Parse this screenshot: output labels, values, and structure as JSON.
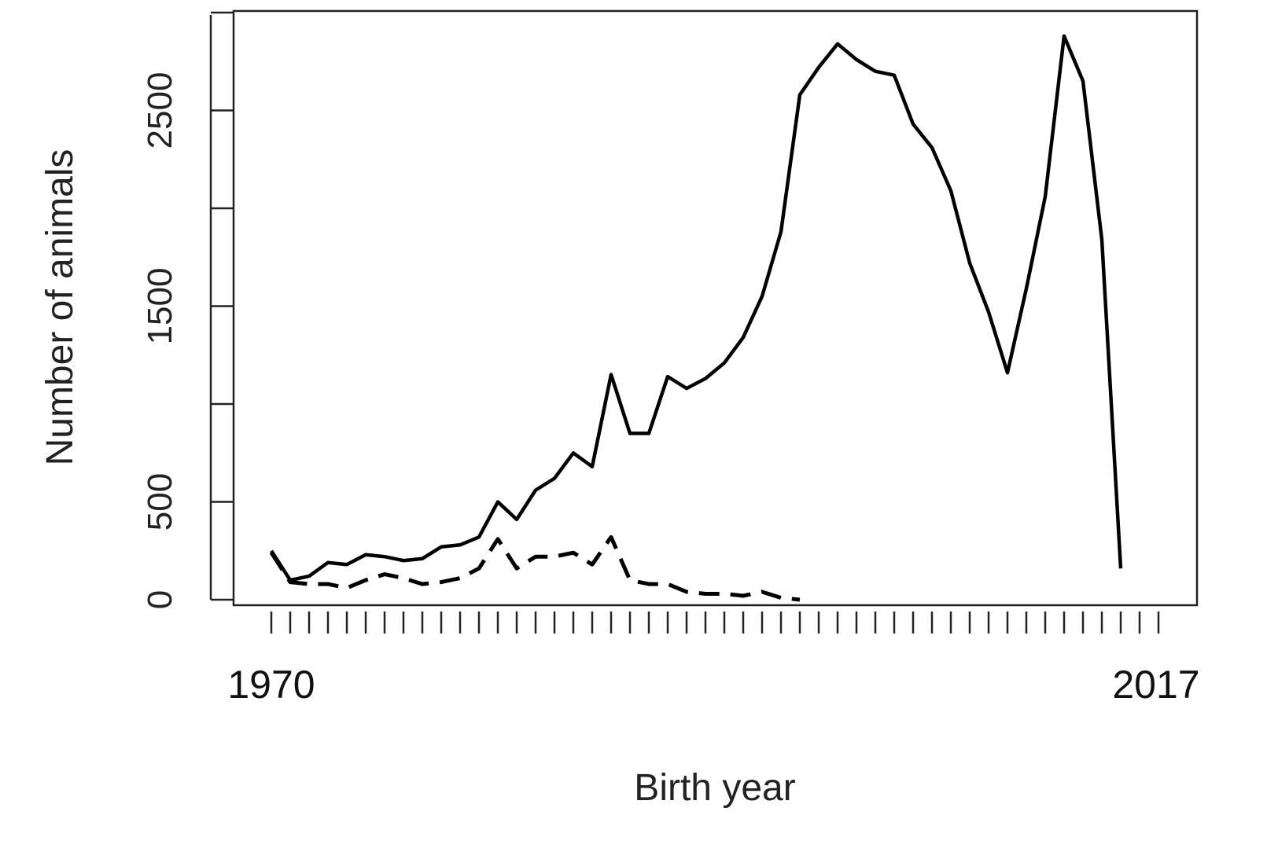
{
  "chart_data": {
    "type": "line",
    "title": "",
    "xlabel": "Birth year",
    "ylabel": "Number of animals",
    "xlim": [
      1970,
      2017
    ],
    "ylim": [
      0,
      3000
    ],
    "x_tick_labels": [
      "1970",
      "2017"
    ],
    "y_tick_labels": [
      "0",
      "500",
      "1500",
      "2500"
    ],
    "y_tick_values": [
      0,
      500,
      1000,
      1500,
      2000,
      2500,
      3000
    ],
    "y_label_values": [
      0,
      500,
      1500,
      2500
    ],
    "grid": false,
    "legend": "none",
    "series": [
      {
        "style": "solid",
        "color": "#000000",
        "x": [
          1970,
          1971,
          1972,
          1973,
          1974,
          1975,
          1976,
          1977,
          1978,
          1979,
          1980,
          1981,
          1982,
          1983,
          1984,
          1985,
          1986,
          1987,
          1988,
          1989,
          1990,
          1991,
          1992,
          1993,
          1994,
          1995,
          1996,
          1997,
          1998,
          1999,
          2000,
          2001,
          2002,
          2003,
          2004,
          2005,
          2006,
          2007,
          2008,
          2009,
          2010,
          2011,
          2012,
          2013,
          2014,
          2015,
          2016,
          2017
        ],
        "values": [
          250,
          100,
          120,
          190,
          180,
          230,
          220,
          200,
          210,
          270,
          280,
          320,
          500,
          410,
          560,
          620,
          750,
          680,
          1150,
          850,
          850,
          1140,
          1080,
          1130,
          1210,
          1340,
          1550,
          1880,
          2580,
          2720,
          2840,
          2760,
          2700,
          2680,
          2430,
          2310,
          2090,
          1720,
          1470,
          1160,
          1590,
          2060,
          2880,
          2650,
          1840,
          160,
          null,
          null
        ]
      },
      {
        "style": "dashed",
        "color": "#000000",
        "x": [
          1970,
          1971,
          1972,
          1973,
          1974,
          1975,
          1976,
          1977,
          1978,
          1979,
          1980,
          1981,
          1982,
          1983,
          1984,
          1985,
          1986,
          1987,
          1988,
          1989,
          1990,
          1991,
          1992,
          1993,
          1994,
          1995,
          1996,
          1997,
          1998,
          1999
        ],
        "values": [
          240,
          90,
          80,
          80,
          60,
          100,
          130,
          110,
          80,
          90,
          110,
          160,
          310,
          160,
          220,
          220,
          240,
          180,
          320,
          100,
          80,
          80,
          40,
          30,
          30,
          20,
          40,
          10,
          0,
          null
        ]
      }
    ]
  }
}
